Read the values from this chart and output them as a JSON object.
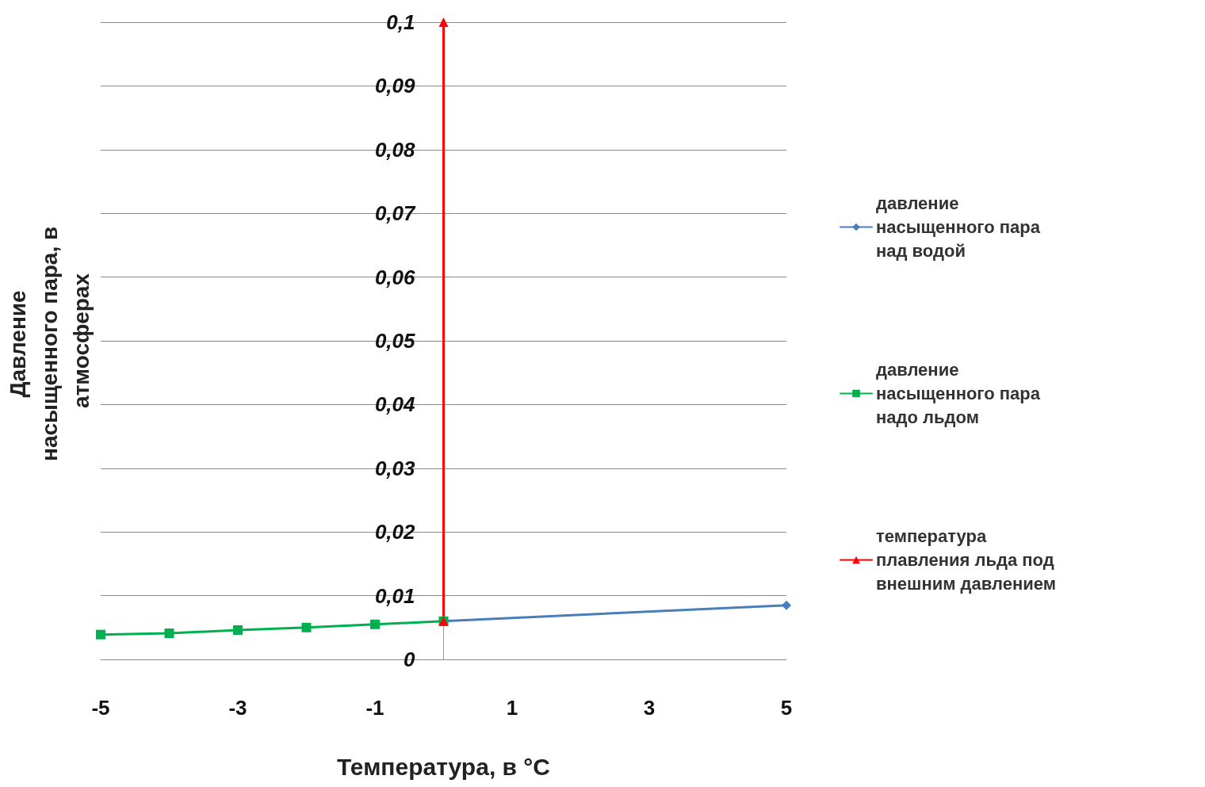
{
  "chart_data": {
    "type": "line",
    "xlabel": "Температура, в °C",
    "ylabel": "Давление насыщенного пара, в атмосферах",
    "xlim": [
      -5,
      5
    ],
    "xticks": [
      -5,
      -3,
      -1,
      1,
      3,
      5
    ],
    "ylim": [
      0,
      0.1
    ],
    "yticks": [
      0,
      {
        "value": 0.01,
        "label": "0,01"
      },
      {
        "value": 0.02,
        "label": "0,02"
      },
      {
        "value": 0.03,
        "label": "0,03"
      },
      {
        "value": 0.04,
        "label": "0,04"
      },
      {
        "value": 0.05,
        "label": "0,05"
      },
      {
        "value": 0.06,
        "label": "0,06"
      },
      {
        "value": 0.07,
        "label": "0,07"
      },
      {
        "value": 0.08,
        "label": "0,08"
      },
      {
        "value": 0.09,
        "label": "0,09"
      },
      {
        "value": 0.1,
        "label": "0,1"
      }
    ],
    "grid": "y",
    "legend": "right",
    "series": [
      {
        "name": "давление насыщенного пара над водой",
        "color": "#4a7ebb",
        "marker": "diamond",
        "x": [
          0,
          5
        ],
        "values": [
          0.006,
          0.0085
        ]
      },
      {
        "name": "давление насыщенного пара надо льдом",
        "color": "#00b050",
        "marker": "square",
        "x": [
          -5,
          -4,
          -3,
          -2,
          -1,
          0
        ],
        "values": [
          0.0039,
          0.0041,
          0.0046,
          0.005,
          0.0055,
          0.006
        ]
      },
      {
        "name": "температура плавления льда под внешним давлением",
        "color": "#ff0000",
        "marker": "triangle",
        "x": [
          0,
          0
        ],
        "values": [
          0.006,
          0.1
        ]
      }
    ]
  }
}
